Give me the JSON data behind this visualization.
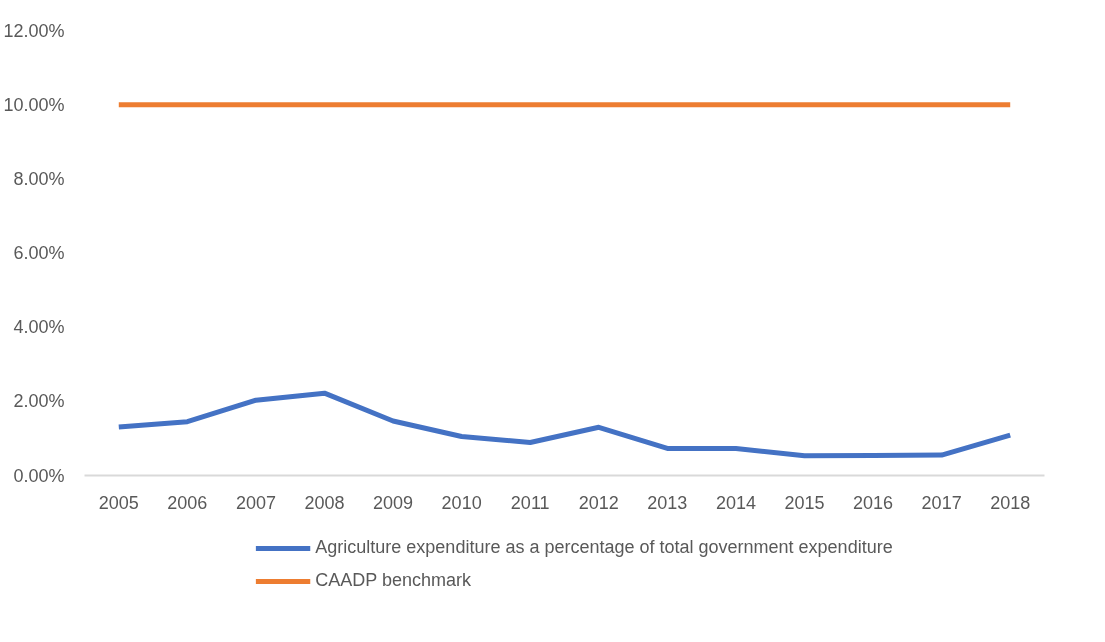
{
  "chart_data": {
    "type": "line",
    "categories": [
      "2005",
      "2006",
      "2007",
      "2008",
      "2009",
      "2010",
      "2011",
      "2012",
      "2013",
      "2014",
      "2015",
      "2016",
      "2017",
      "2018"
    ],
    "series": [
      {
        "name": "Agriculture expenditure as a percentage of total government expenditure",
        "color": "#4472c4",
        "values": [
          1.31,
          1.45,
          2.03,
          2.22,
          1.47,
          1.05,
          0.89,
          1.3,
          0.73,
          0.73,
          0.53,
          0.54,
          0.55,
          1.09
        ]
      },
      {
        "name": "CAADP benchmark",
        "color": "#ed7d31",
        "values": [
          10,
          10,
          10,
          10,
          10,
          10,
          10,
          10,
          10,
          10,
          10,
          10,
          10,
          10
        ]
      }
    ],
    "ylim": [
      0,
      12
    ],
    "yticks": [
      {
        "value": 0,
        "label": "0.00%"
      },
      {
        "value": 2,
        "label": "2.00%"
      },
      {
        "value": 4,
        "label": "4.00%"
      },
      {
        "value": 6,
        "label": "6.00%"
      },
      {
        "value": 8,
        "label": "8.00%"
      },
      {
        "value": 10,
        "label": "10.00%"
      },
      {
        "value": 12,
        "label": "12.00%"
      }
    ],
    "grid": false,
    "legend": "bottom",
    "marker": "none",
    "line_style": "solid"
  }
}
